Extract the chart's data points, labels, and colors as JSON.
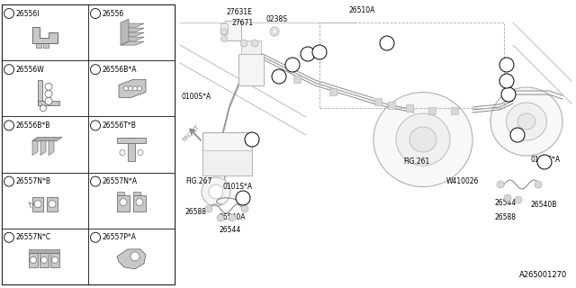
{
  "bg_color": "#ffffff",
  "border_color": "#000000",
  "line_color": "#aaaaaa",
  "text_color": "#000000",
  "fig_width": 6.4,
  "fig_height": 3.2,
  "dpi": 100,
  "part_number": "A265001270",
  "left_panel_items": [
    {
      "num": "1",
      "label": "26556I"
    },
    {
      "num": "2",
      "label": "26556"
    },
    {
      "num": "3",
      "label": "26556W"
    },
    {
      "num": "4",
      "label": "26556B*A"
    },
    {
      "num": "5",
      "label": "26556B*B"
    },
    {
      "num": "6",
      "label": "26556T*B"
    },
    {
      "num": "7",
      "label": "26557N*B"
    },
    {
      "num": "8",
      "label": "26557N*A"
    },
    {
      "num": "9",
      "label": "26557N*C"
    },
    {
      "num": "10",
      "label": "26557P*A"
    }
  ]
}
